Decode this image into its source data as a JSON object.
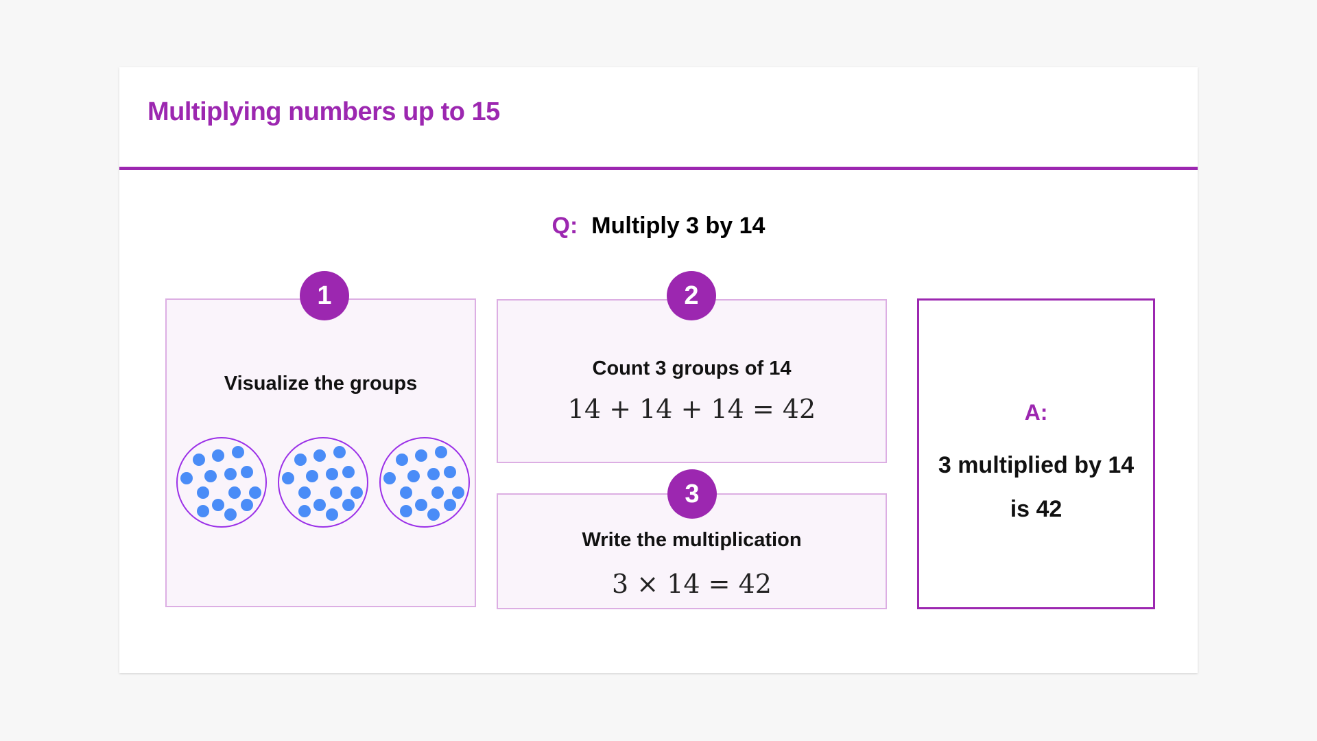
{
  "title": "Multiplying numbers up to 15",
  "question": {
    "label": "Q:",
    "text": "Multiply 3 by 14"
  },
  "steps": [
    {
      "number": "1",
      "label": "Visualize the groups",
      "groups": 3,
      "dots_per_group": 14
    },
    {
      "number": "2",
      "label": "Count 3 groups of 14",
      "equation": "14 + 14 + 14 = 42"
    },
    {
      "number": "3",
      "label": "Write the multiplication",
      "equation": "3 × 14 = 42"
    }
  ],
  "answer": {
    "label": "A:",
    "text": "3 multiplied by 14 is 42"
  },
  "colors": {
    "accent": "#9c27b0",
    "dot": "#4a8cf7",
    "group_circle": "#9b30e8",
    "box_bg": "#faf4fb"
  }
}
